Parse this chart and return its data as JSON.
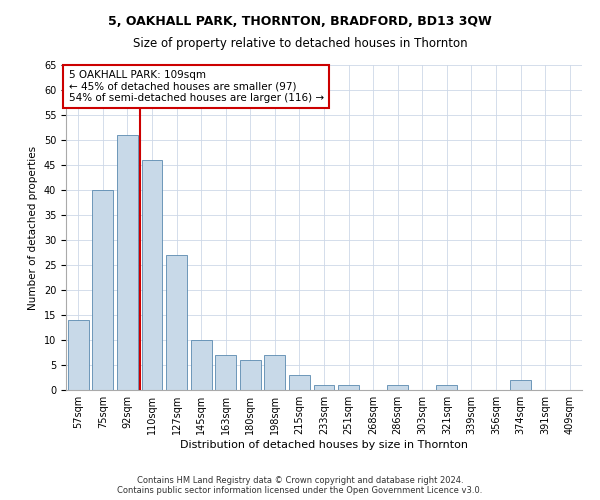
{
  "title1": "5, OAKHALL PARK, THORNTON, BRADFORD, BD13 3QW",
  "title2": "Size of property relative to detached houses in Thornton",
  "xlabel": "Distribution of detached houses by size in Thornton",
  "ylabel": "Number of detached properties",
  "categories": [
    "57sqm",
    "75sqm",
    "92sqm",
    "110sqm",
    "127sqm",
    "145sqm",
    "163sqm",
    "180sqm",
    "198sqm",
    "215sqm",
    "233sqm",
    "251sqm",
    "268sqm",
    "286sqm",
    "303sqm",
    "321sqm",
    "339sqm",
    "356sqm",
    "374sqm",
    "391sqm",
    "409sqm"
  ],
  "values": [
    14,
    40,
    51,
    46,
    27,
    10,
    7,
    6,
    7,
    3,
    1,
    1,
    0,
    1,
    0,
    1,
    0,
    0,
    2,
    0,
    0
  ],
  "bar_color": "#c8d9e8",
  "bar_edge_color": "#5a8ab0",
  "property_index": 3,
  "property_label": "5 OAKHALL PARK: 109sqm",
  "annotation_line1": "← 45% of detached houses are smaller (97)",
  "annotation_line2": "54% of semi-detached houses are larger (116) →",
  "red_line_color": "#cc0000",
  "annotation_box_color": "#ffffff",
  "annotation_box_edge": "#cc0000",
  "ylim": [
    0,
    65
  ],
  "yticks": [
    0,
    5,
    10,
    15,
    20,
    25,
    30,
    35,
    40,
    45,
    50,
    55,
    60,
    65
  ],
  "footer1": "Contains HM Land Registry data © Crown copyright and database right 2024.",
  "footer2": "Contains public sector information licensed under the Open Government Licence v3.0.",
  "background_color": "#ffffff",
  "grid_color": "#cdd8e8",
  "title1_fontsize": 9,
  "title2_fontsize": 8.5,
  "xlabel_fontsize": 8,
  "ylabel_fontsize": 7.5,
  "tick_fontsize": 7,
  "annotation_fontsize": 7.5,
  "footer_fontsize": 6
}
